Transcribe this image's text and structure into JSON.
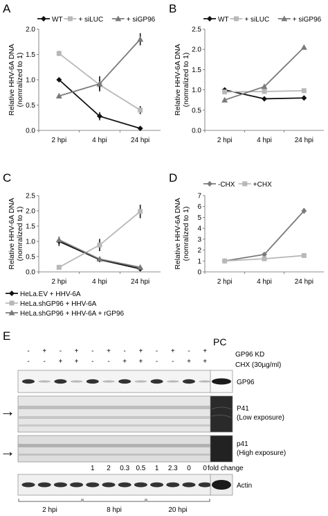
{
  "figure": {
    "panels": {
      "A": "A",
      "B": "B",
      "C": "C",
      "D": "D",
      "E": "E"
    }
  },
  "chart_data": [
    {
      "panel": "A",
      "type": "line",
      "categories": [
        "2 hpi",
        "4 hpi",
        "24 hpi"
      ],
      "ylabel": "Relative HHV-6A DNA",
      "ylabel2": "(nomralized to 1)",
      "ylim": [
        0,
        2
      ],
      "yticks": [
        "0.0",
        "0.5",
        "1.0",
        "1.5",
        "2.0"
      ],
      "legend": "top",
      "series": [
        {
          "name": "WT",
          "color": "#111111",
          "marker": "diamond",
          "values": [
            1.0,
            0.28,
            0.04
          ],
          "err": [
            0,
            0.08,
            0
          ]
        },
        {
          "name": "+ siLUC",
          "color": "#b8b8b8",
          "marker": "square",
          "values": [
            1.52,
            0.9,
            0.4
          ],
          "err": [
            0.05,
            0.1,
            0.08
          ]
        },
        {
          "name": "+ siGP96",
          "color": "#7a7a7a",
          "marker": "triangle",
          "values": [
            0.68,
            0.92,
            1.8
          ],
          "err": [
            0.05,
            0.15,
            0.12
          ]
        }
      ]
    },
    {
      "panel": "B",
      "type": "line",
      "categories": [
        "2 hpi",
        "4 hpi",
        "24 hpi"
      ],
      "ylabel": "Relative HHV-6A DNA",
      "ylabel2": "(nomralized to 1)",
      "ylim": [
        0,
        2.5
      ],
      "yticks": [
        "0.0",
        "0.5",
        "1.0",
        "1.5",
        "2.0",
        "2.5"
      ],
      "legend": "top",
      "series": [
        {
          "name": "WT",
          "color": "#111111",
          "marker": "diamond",
          "values": [
            1.0,
            0.78,
            0.8
          ],
          "err": [
            0,
            0.05,
            0.05
          ]
        },
        {
          "name": "+ siLUC",
          "color": "#b8b8b8",
          "marker": "square",
          "values": [
            0.95,
            0.96,
            0.98
          ],
          "err": [
            0,
            0,
            0
          ]
        },
        {
          "name": "+ siGP96",
          "color": "#7a7a7a",
          "marker": "triangle",
          "values": [
            0.75,
            1.08,
            2.05
          ],
          "err": [
            0,
            0,
            0
          ]
        }
      ]
    },
    {
      "panel": "C",
      "type": "line",
      "categories": [
        "2 hpi",
        "4 hpi",
        "24 hpi"
      ],
      "ylabel": "Relative HHV-6A DNA",
      "ylabel2": "(nomralized to 1)",
      "ylim": [
        0,
        2.5
      ],
      "yticks": [
        "0.0",
        "0.5",
        "1.0",
        "1.5",
        "2.0",
        "2.5"
      ],
      "legend": "bottom",
      "series": [
        {
          "name": "HeLa.EV + HHV-6A",
          "color": "#111111",
          "marker": "diamond",
          "values": [
            1.0,
            0.4,
            0.1
          ],
          "err": [
            0.15,
            0.05,
            0.04
          ]
        },
        {
          "name": "HeLa.shGP96 + HHV-6A",
          "color": "#b8b8b8",
          "marker": "square",
          "values": [
            0.15,
            0.88,
            1.98
          ],
          "err": [
            0,
            0.2,
            0.22
          ]
        },
        {
          "name": "HeLa.shGP96 + HHV-6A + rGP96",
          "color": "#7a7a7a",
          "marker": "triangle",
          "values": [
            1.05,
            0.42,
            0.15
          ],
          "err": [
            0.1,
            0.06,
            0.04
          ]
        }
      ]
    },
    {
      "panel": "D",
      "type": "line",
      "categories": [
        "2 hpi",
        "4 hpi",
        "24 hpi"
      ],
      "ylabel": "Relative HHV-6A DNA",
      "ylabel2": "(nomralized to 1)",
      "ylim": [
        0,
        7
      ],
      "yticks": [
        "0",
        "1",
        "2",
        "3",
        "4",
        "5",
        "6",
        "7"
      ],
      "legend": "top",
      "series": [
        {
          "name": "-CHX",
          "color": "#7a7a7a",
          "marker": "diamond",
          "values": [
            1.0,
            1.6,
            5.6
          ],
          "err": [
            0,
            0,
            0.25
          ]
        },
        {
          "name": "+CHX",
          "color": "#b8b8b8",
          "marker": "square",
          "values": [
            1.0,
            1.2,
            1.5
          ],
          "err": [
            0,
            0,
            0
          ]
        }
      ]
    }
  ],
  "blot": {
    "row1_signs": [
      "-",
      "+",
      "-",
      "+",
      "-",
      "+",
      "-",
      "+",
      "-",
      "+",
      "-",
      "+"
    ],
    "row2_signs": [
      "-",
      "-",
      "+",
      "+",
      "-",
      "-",
      "+",
      "+",
      "-",
      "-",
      "+",
      "+"
    ],
    "pc": "PC",
    "gp96_kd": "GP96 KD",
    "chx": "CHX (30µg/ml)",
    "band_labels": {
      "gp96": "GP96",
      "p41_low_1": "P41",
      "p41_low_2": "(Low exposure)",
      "p41_high_1": "p41",
      "p41_high_2": "(High exposure)",
      "actin": "Actin"
    },
    "fold_values": [
      "1",
      "2",
      "0.3",
      "0.5",
      "1",
      "2.3",
      "0",
      "0"
    ],
    "fold_label": "fold change",
    "time_labels": [
      "2 hpi",
      "8 hpi",
      "20 hpi"
    ],
    "arrow": "→"
  }
}
